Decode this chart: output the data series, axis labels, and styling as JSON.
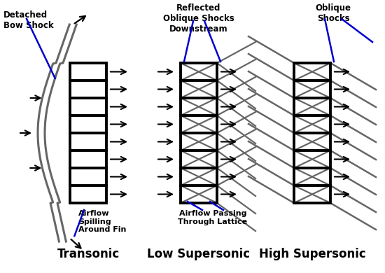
{
  "bg_color": "#ffffff",
  "grid_color": "#000000",
  "shock_color": "#666666",
  "arrow_color": "#000000",
  "blue_color": "#0000cc",
  "label1": "Transonic",
  "label2": "Low Supersonic",
  "label3": "High Supersonic",
  "ann1": "Detached\nBow Shock",
  "ann2": "Reflected\nOblique Shocks\nDownstream",
  "ann3": "Oblique\nShocks",
  "ann4": "Airflow\nSpilling\nAround Fin",
  "ann5": "Airflow Passing\nThrough Lattice",
  "fig_width": 5.5,
  "fig_height": 3.9,
  "dpi": 100
}
